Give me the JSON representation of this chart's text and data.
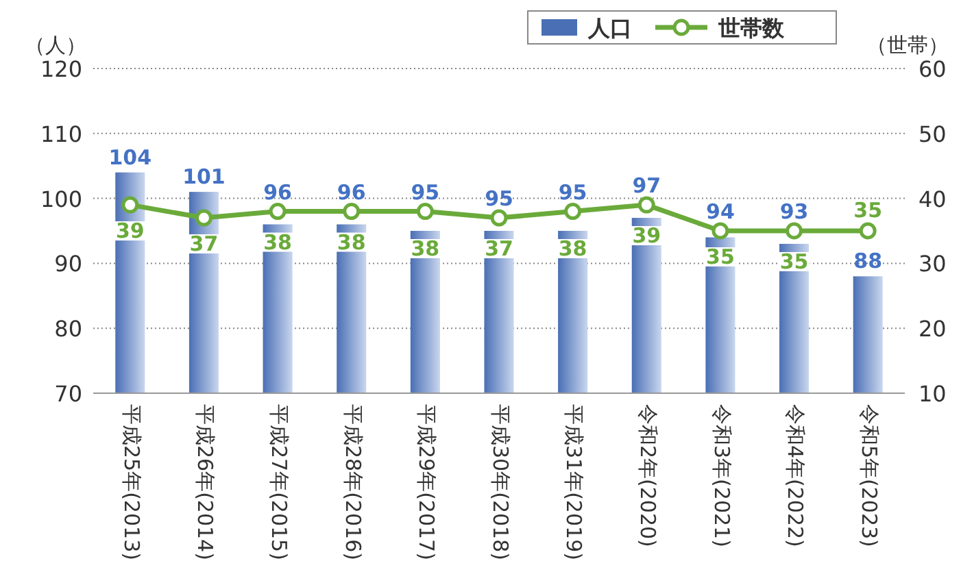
{
  "chart_data": {
    "type": "bar",
    "ylabel": "（人）",
    "y2label": "（世帯）",
    "categories": [
      "平成25年(2013)",
      "平成26年(2014)",
      "平成27年(2015)",
      "平成28年(2016)",
      "平成29年(2017)",
      "平成30年(2018)",
      "平成31年(2019)",
      "令和2年(2020)",
      "令和3年(2021)",
      "令和4年(2022)",
      "令和5年(2023)"
    ],
    "series": [
      {
        "name": "人口",
        "color": "#4a6fb5",
        "values": [
          104,
          101,
          96,
          96,
          95,
          95,
          95,
          97,
          94,
          93,
          88
        ]
      },
      {
        "name": "世帯数",
        "type": "line",
        "axis": "y2",
        "color": "#6aaa3a",
        "marker": "circle",
        "values": [
          39,
          37,
          38,
          38,
          38,
          37,
          38,
          39,
          35,
          35,
          35
        ]
      }
    ],
    "ylim": [
      70,
      120
    ],
    "yticks": [
      70,
      80,
      90,
      100,
      110,
      120
    ],
    "y2lim": [
      10,
      60
    ],
    "y2ticks": [
      10,
      20,
      30,
      40,
      50,
      60
    ],
    "grid": "y",
    "legend": "top right",
    "data_labels": true
  }
}
